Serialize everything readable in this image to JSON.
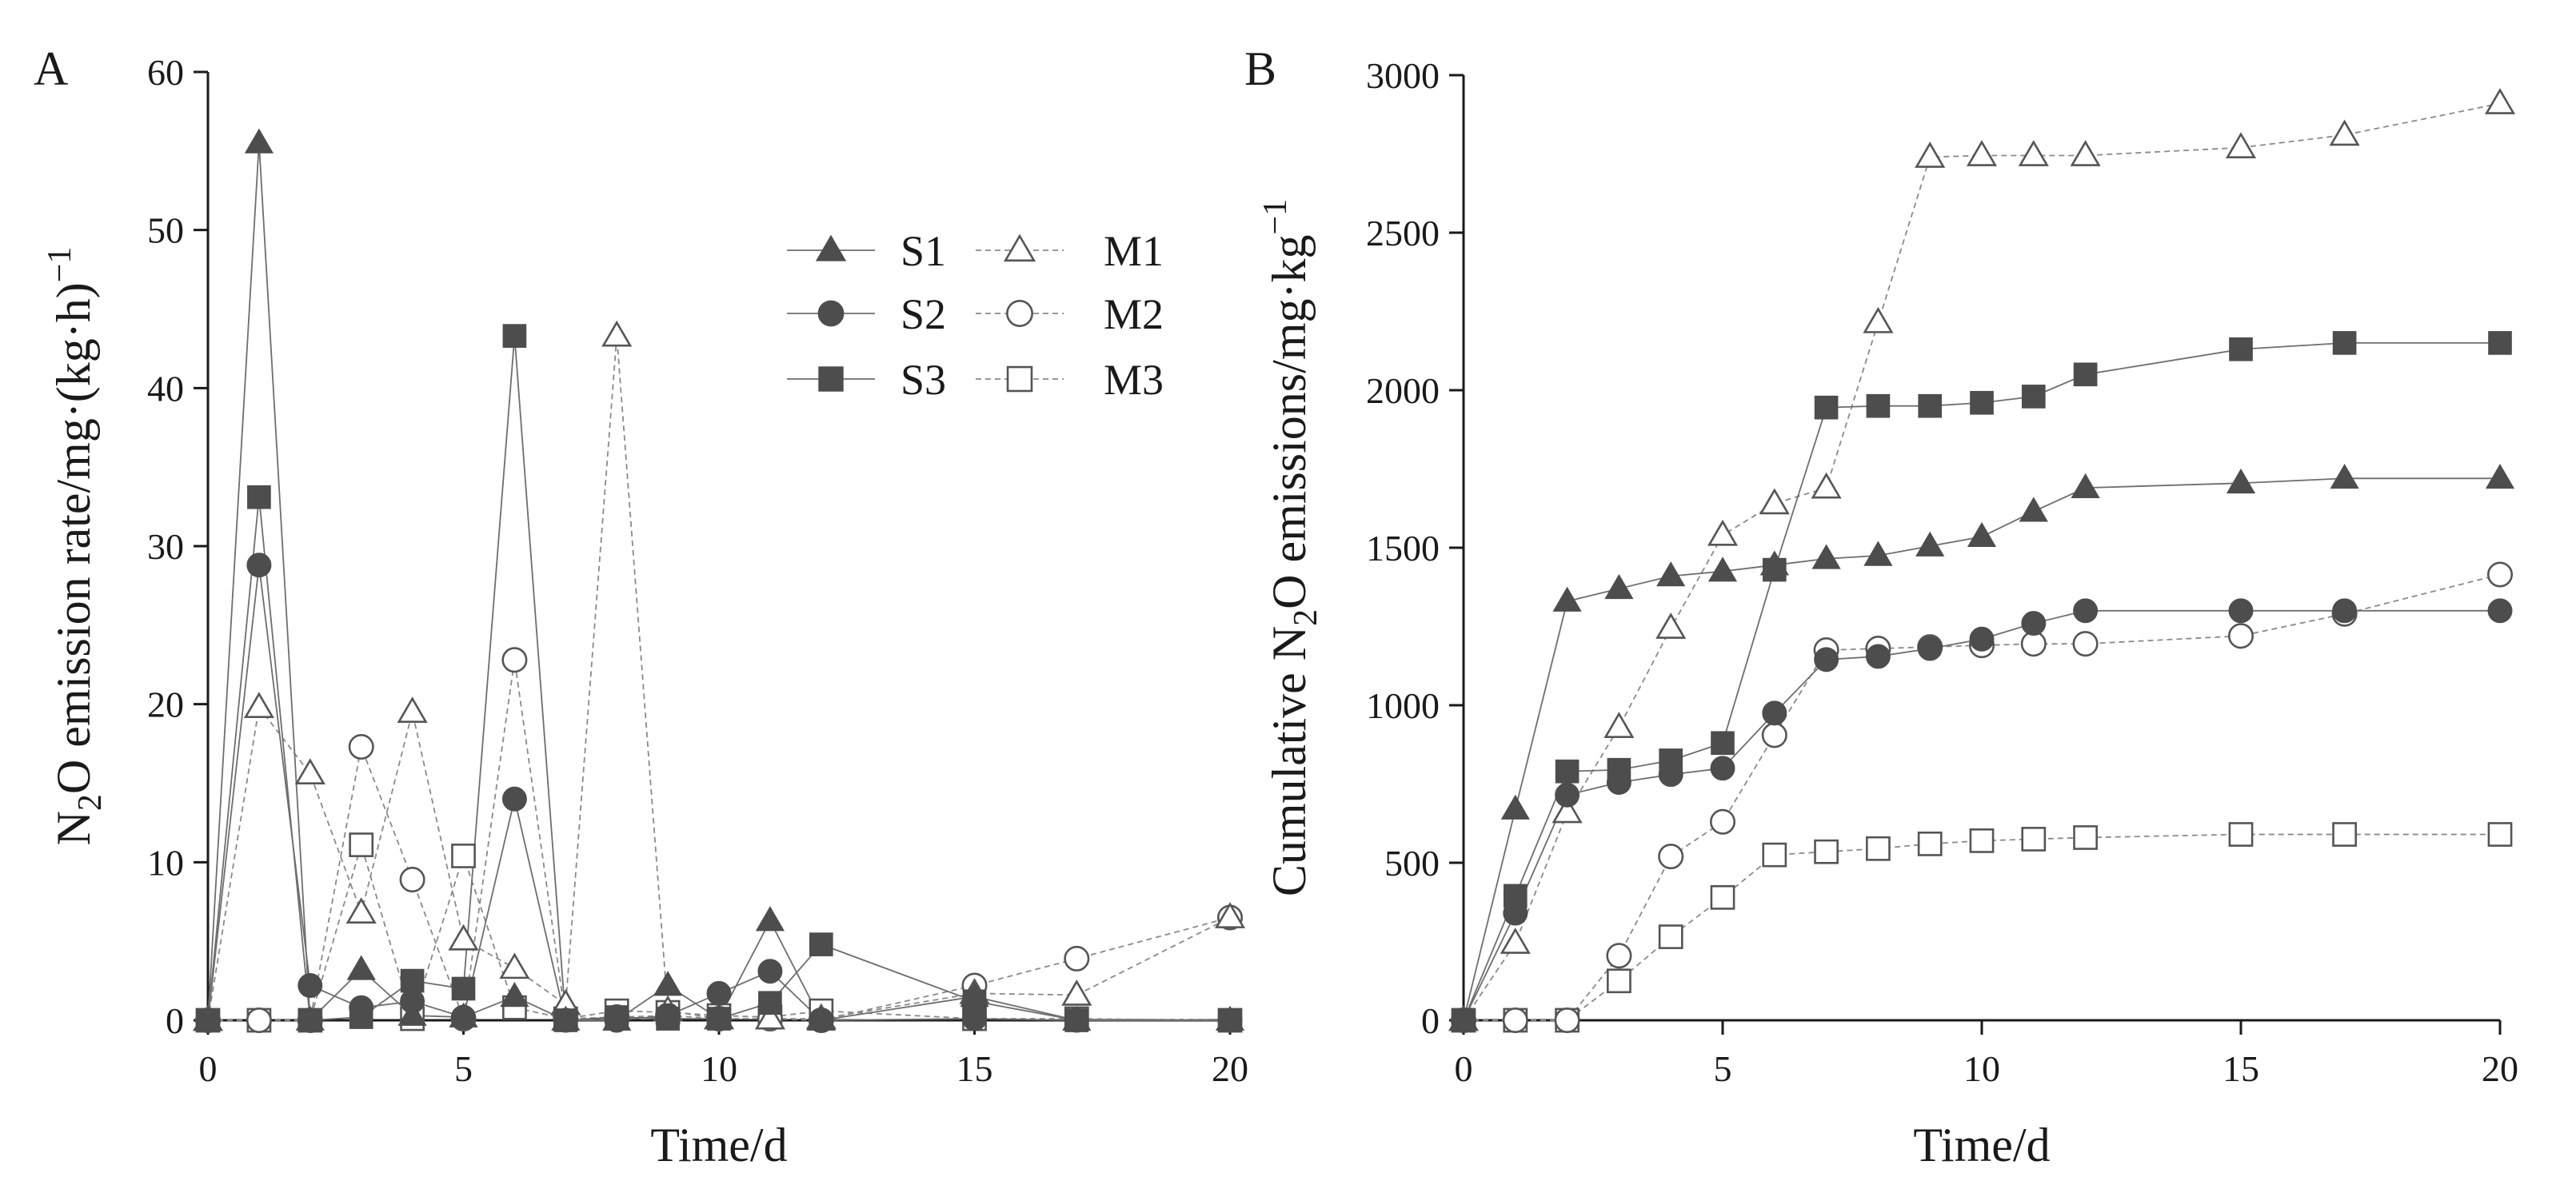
{
  "chart_data": [
    {
      "panel": "A",
      "type": "line",
      "xlabel": "Time/d",
      "ylabel_parts": {
        "a": "N",
        "sub": "2",
        "b": "O emission rate/mg·(kg·h)",
        "sup": "−1"
      },
      "xlim": [
        0,
        20
      ],
      "ylim": [
        0,
        60
      ],
      "xticks": [
        "0",
        "5",
        "10",
        "15",
        "20"
      ],
      "yticks": [
        "0",
        "10",
        "20",
        "30",
        "40",
        "50",
        "60"
      ],
      "x": [
        0,
        1,
        2,
        3,
        4,
        5,
        6,
        7,
        8,
        9,
        10,
        11,
        12,
        15,
        17,
        20
      ],
      "series": [
        {
          "name": "S1",
          "values": [
            0,
            55.5,
            0,
            3.2,
            0.3,
            0.2,
            1.5,
            0,
            0,
            2.2,
            0.1,
            6.3,
            0,
            1.5,
            0,
            0
          ]
        },
        {
          "name": "S2",
          "values": [
            0,
            28.8,
            2.2,
            0.8,
            1.2,
            0.2,
            14.0,
            0,
            0,
            0.3,
            1.7,
            3.1,
            0,
            0.1,
            0,
            0
          ]
        },
        {
          "name": "S3",
          "values": [
            0,
            33.1,
            0,
            0.2,
            2.5,
            2.0,
            43.3,
            0,
            0.2,
            0.1,
            0.1,
            1.1,
            4.8,
            1.2,
            0,
            0
          ]
        },
        {
          "name": "M1",
          "values": [
            0,
            19.8,
            15.6,
            6.8,
            19.5,
            5.1,
            3.3,
            1.0,
            43.3,
            0.6,
            0.1,
            0.1,
            0.1,
            1.7,
            1.6,
            6.5
          ]
        },
        {
          "name": "M2",
          "values": [
            0,
            0,
            0,
            17.3,
            8.9,
            0.1,
            22.8,
            0.1,
            0.2,
            0.3,
            0.1,
            0.1,
            0,
            2.2,
            3.9,
            6.5
          ]
        },
        {
          "name": "M3",
          "values": [
            0,
            0,
            0,
            11.1,
            0.1,
            10.4,
            0.8,
            0.1,
            0.6,
            0.5,
            0.3,
            0.2,
            0.6,
            0.1,
            0.1,
            0
          ]
        }
      ],
      "legend_position": "top-right"
    },
    {
      "panel": "B",
      "type": "line",
      "xlabel": "Time/d",
      "ylabel_parts": {
        "a": "Cumulative N",
        "sub": "2",
        "b": "O emissions/mg·kg",
        "sup": "−1"
      },
      "xlim": [
        0,
        20
      ],
      "ylim": [
        0,
        3000
      ],
      "xticks": [
        "0",
        "5",
        "10",
        "15",
        "20"
      ],
      "yticks": [
        "0",
        "500",
        "1000",
        "1500",
        "2000",
        "2500",
        "3000"
      ],
      "x": [
        0,
        1,
        2,
        3,
        4,
        5,
        6,
        7,
        8,
        9,
        10,
        11,
        12,
        15,
        17,
        20
      ],
      "series": [
        {
          "name": "S1",
          "values": [
            0,
            670,
            1330,
            1370,
            1410,
            1425,
            1445,
            1465,
            1475,
            1505,
            1535,
            1615,
            1690,
            1705,
            1720,
            1720
          ]
        },
        {
          "name": "S2",
          "values": [
            0,
            340,
            715,
            755,
            780,
            800,
            975,
            1145,
            1155,
            1180,
            1210,
            1260,
            1300,
            1300,
            1300,
            1300
          ]
        },
        {
          "name": "S3",
          "values": [
            0,
            395,
            790,
            795,
            825,
            880,
            1430,
            1945,
            1950,
            1950,
            1960,
            1980,
            2050,
            2130,
            2150,
            2150
          ]
        },
        {
          "name": "M1",
          "values": [
            0,
            245,
            660,
            930,
            1245,
            1540,
            1640,
            1690,
            2215,
            2740,
            2745,
            2745,
            2745,
            2770,
            2810,
            2910
          ]
        },
        {
          "name": "M2",
          "values": [
            0,
            0,
            0,
            205,
            520,
            630,
            905,
            1175,
            1180,
            1185,
            1190,
            1195,
            1195,
            1220,
            1290,
            1415
          ]
        },
        {
          "name": "M3",
          "values": [
            0,
            0,
            0,
            125,
            265,
            390,
            525,
            535,
            545,
            560,
            570,
            575,
            580,
            590,
            590,
            590
          ]
        }
      ]
    }
  ],
  "legend": {
    "entries": [
      {
        "name": "S1",
        "marker": "triangle",
        "filled": true
      },
      {
        "name": "M1",
        "marker": "triangle",
        "filled": false
      },
      {
        "name": "S2",
        "marker": "circle",
        "filled": true
      },
      {
        "name": "M2",
        "marker": "circle",
        "filled": false
      },
      {
        "name": "S3",
        "marker": "square",
        "filled": true
      },
      {
        "name": "M3",
        "marker": "square",
        "filled": false
      }
    ]
  },
  "colors": {
    "filled_marker": "#4d4d4d",
    "solid_line": "#6e6e6e",
    "dashed_line": "#8a8a8a",
    "axis": "#1a1a1a"
  }
}
